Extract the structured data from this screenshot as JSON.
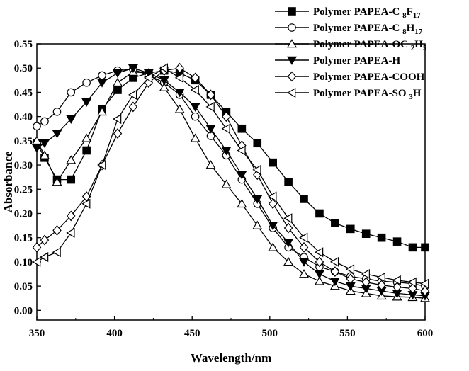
{
  "chart_data": {
    "type": "line",
    "title": "",
    "xlabel": "Wavelength/nm",
    "ylabel": "Absorbance",
    "xlim": [
      350,
      600
    ],
    "ylim": [
      -0.02,
      0.55
    ],
    "xticks": [
      350,
      400,
      450,
      500,
      550,
      600
    ],
    "xtick_labels": [
      "350",
      "400",
      "450",
      "500",
      "550",
      "600"
    ],
    "yticks": [
      0.0,
      0.05,
      0.1,
      0.15,
      0.2,
      0.25,
      0.3,
      0.35,
      0.4,
      0.45,
      0.5,
      0.55
    ],
    "ytick_labels": [
      "0.00",
      "0.05",
      "0.10",
      "0.15",
      "0.20",
      "0.25",
      "0.30",
      "0.35",
      "0.40",
      "0.45",
      "0.50",
      "0.55"
    ],
    "grid": false,
    "legend_position": "top-right",
    "series": [
      {
        "name": "Polymer PAPEA-C 8F17",
        "legend_parts": [
          [
            "Polymer PAPEA-C ",
            ""
          ],
          [
            "8",
            "sub"
          ],
          [
            "F",
            ""
          ],
          [
            "17",
            "sub"
          ]
        ],
        "marker": "square-filled",
        "x": [
          350,
          355,
          363,
          372,
          382,
          392,
          402,
          412,
          422,
          432,
          442,
          452,
          462,
          472,
          482,
          492,
          502,
          512,
          522,
          532,
          542,
          552,
          562,
          572,
          582,
          592,
          600
        ],
        "y": [
          0.345,
          0.315,
          0.27,
          0.27,
          0.33,
          0.415,
          0.455,
          0.48,
          0.49,
          0.495,
          0.49,
          0.475,
          0.445,
          0.41,
          0.375,
          0.345,
          0.305,
          0.265,
          0.23,
          0.2,
          0.18,
          0.168,
          0.158,
          0.15,
          0.142,
          0.13,
          0.13
        ]
      },
      {
        "name": "Polymer PAPEA-C 8H17",
        "legend_parts": [
          [
            "Polymer PAPEA-C ",
            ""
          ],
          [
            "8",
            "sub"
          ],
          [
            "H",
            ""
          ],
          [
            "17",
            "sub"
          ]
        ],
        "marker": "circle-open",
        "x": [
          350,
          355,
          363,
          372,
          382,
          392,
          402,
          412,
          422,
          432,
          442,
          452,
          462,
          472,
          482,
          492,
          502,
          512,
          522,
          532,
          542,
          552,
          562,
          572,
          582,
          592,
          600
        ],
        "y": [
          0.38,
          0.39,
          0.41,
          0.45,
          0.47,
          0.485,
          0.495,
          0.498,
          0.485,
          0.47,
          0.445,
          0.4,
          0.36,
          0.32,
          0.27,
          0.22,
          0.17,
          0.13,
          0.11,
          0.09,
          0.08,
          0.07,
          0.065,
          0.06,
          0.058,
          0.055,
          0.05
        ]
      },
      {
        "name": "Polymer PAPEA-OC 2H5",
        "legend_parts": [
          [
            "Polymer PAPEA-OC ",
            ""
          ],
          [
            "2",
            "sub"
          ],
          [
            "H",
            ""
          ],
          [
            "5",
            "sub"
          ]
        ],
        "marker": "triangle-up-open",
        "x": [
          350,
          355,
          363,
          372,
          382,
          392,
          402,
          412,
          422,
          432,
          442,
          452,
          462,
          472,
          482,
          492,
          502,
          512,
          522,
          532,
          542,
          552,
          562,
          572,
          582,
          592,
          600
        ],
        "y": [
          0.35,
          0.32,
          0.265,
          0.31,
          0.355,
          0.41,
          0.47,
          0.492,
          0.49,
          0.46,
          0.415,
          0.355,
          0.3,
          0.26,
          0.22,
          0.175,
          0.13,
          0.1,
          0.075,
          0.06,
          0.05,
          0.04,
          0.035,
          0.03,
          0.028,
          0.027,
          0.025
        ]
      },
      {
        "name": "Polymer PAPEA-H",
        "legend_parts": [
          [
            "Polymer PAPEA-H",
            ""
          ]
        ],
        "marker": "triangle-down-filled",
        "x": [
          350,
          355,
          363,
          372,
          382,
          392,
          402,
          412,
          422,
          432,
          442,
          452,
          462,
          472,
          482,
          492,
          502,
          512,
          522,
          532,
          542,
          552,
          562,
          572,
          582,
          592,
          600
        ],
        "y": [
          0.335,
          0.345,
          0.365,
          0.395,
          0.43,
          0.47,
          0.49,
          0.5,
          0.49,
          0.475,
          0.45,
          0.42,
          0.375,
          0.33,
          0.28,
          0.23,
          0.175,
          0.14,
          0.1,
          0.075,
          0.06,
          0.05,
          0.045,
          0.04,
          0.035,
          0.032,
          0.03
        ]
      },
      {
        "name": "Polymer PAPEA-COOH",
        "legend_parts": [
          [
            "Polymer PAPEA-COOH",
            ""
          ]
        ],
        "marker": "diamond-open",
        "x": [
          350,
          355,
          363,
          372,
          382,
          392,
          402,
          412,
          422,
          432,
          442,
          452,
          462,
          472,
          482,
          492,
          502,
          512,
          522,
          532,
          542,
          552,
          562,
          572,
          582,
          592,
          600
        ],
        "y": [
          0.13,
          0.145,
          0.165,
          0.195,
          0.235,
          0.3,
          0.365,
          0.42,
          0.47,
          0.495,
          0.5,
          0.48,
          0.445,
          0.4,
          0.34,
          0.28,
          0.22,
          0.17,
          0.13,
          0.1,
          0.08,
          0.065,
          0.058,
          0.052,
          0.048,
          0.045,
          0.04
        ]
      },
      {
        "name": "Polymer PAPEA-SO 3H",
        "legend_parts": [
          [
            "Polymer PAPEA-SO ",
            ""
          ],
          [
            "3",
            "sub"
          ],
          [
            "H",
            ""
          ]
        ],
        "marker": "triangle-left-open",
        "x": [
          350,
          355,
          363,
          372,
          382,
          392,
          402,
          412,
          422,
          432,
          442,
          452,
          462,
          472,
          482,
          492,
          502,
          512,
          522,
          532,
          542,
          552,
          562,
          572,
          582,
          592,
          600
        ],
        "y": [
          0.1,
          0.11,
          0.12,
          0.16,
          0.22,
          0.3,
          0.395,
          0.445,
          0.48,
          0.5,
          0.48,
          0.455,
          0.42,
          0.375,
          0.33,
          0.29,
          0.235,
          0.19,
          0.15,
          0.12,
          0.1,
          0.085,
          0.075,
          0.068,
          0.062,
          0.058,
          0.055
        ]
      }
    ]
  }
}
